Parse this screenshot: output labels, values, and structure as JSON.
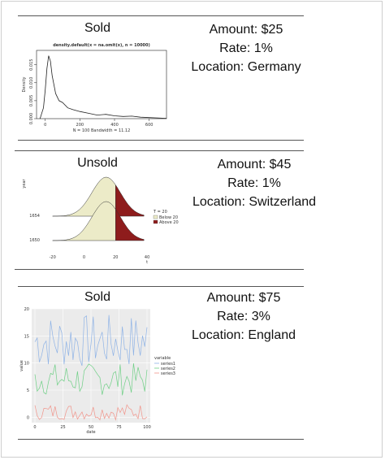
{
  "items": [
    {
      "status": "Sold",
      "info": [
        "Amount: $25",
        "Rate: 1%",
        "Location: Germany"
      ],
      "chart_data": {
        "type": "line",
        "title": "density.default(x = na.omit(x), n = 10000)",
        "xlabel": "N = 100   Bandwidth = 11.12",
        "ylabel": "Density",
        "xticks": [
          "0",
          "200",
          "400",
          "600"
        ],
        "yticks": [
          "0.000",
          "0.005",
          "0.010",
          "0.015"
        ],
        "x": [
          -30,
          -10,
          0,
          10,
          20,
          30,
          40,
          60,
          80,
          100,
          130,
          160,
          200,
          250,
          300,
          350,
          400,
          450,
          500,
          550,
          600,
          650,
          700
        ],
        "y": [
          0.0,
          0.003,
          0.008,
          0.014,
          0.0175,
          0.016,
          0.012,
          0.007,
          0.005,
          0.0045,
          0.003,
          0.0025,
          0.002,
          0.0015,
          0.001,
          0.0012,
          0.0008,
          0.0006,
          0.0007,
          0.0004,
          0.0003,
          0.0002,
          0.0001
        ],
        "xlim": [
          -50,
          700
        ],
        "ylim": [
          0,
          0.019
        ]
      }
    },
    {
      "status": "Unsold",
      "info": [
        "Amount: $45",
        "Rate: 1%",
        "Location: Switzerland"
      ],
      "chart_data": {
        "type": "area",
        "ylabel": "year",
        "xlabel": "t",
        "xticks": [
          "-20",
          "0",
          "20",
          "40"
        ],
        "yticks": [
          "1650",
          "1654"
        ],
        "legend_title": "T = 20",
        "legend": [
          "Below 20",
          "Above 20"
        ],
        "colors": {
          "below": "#ecebc8",
          "above": "#8e1c1c"
        }
      }
    },
    {
      "status": "Sold",
      "info": [
        "Amount: $75",
        "Rate: 3%",
        "Location: England"
      ],
      "chart_data": {
        "type": "line",
        "xlabel": "date",
        "ylabel": "value",
        "xticks": [
          "0",
          "25",
          "50",
          "75",
          "100"
        ],
        "yticks": [
          "0",
          "5",
          "10",
          "15",
          "20"
        ],
        "ylim": [
          -1,
          20
        ],
        "legend_title": "variable",
        "series": [
          {
            "name": "series1",
            "color": "#8fb3e6"
          },
          {
            "name": "series2",
            "color": "#6fcf86"
          },
          {
            "name": "series3",
            "color": "#f1948a"
          }
        ]
      }
    }
  ]
}
